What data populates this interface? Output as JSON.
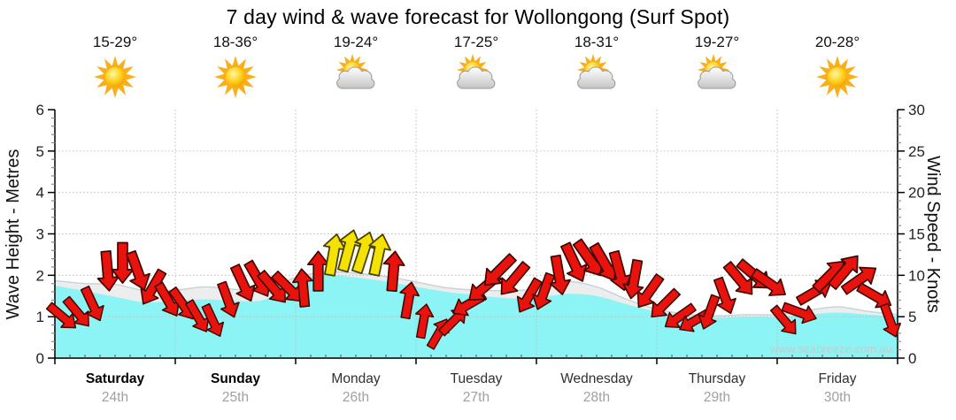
{
  "title": "7 day wind & wave forecast for Wollongong (Surf Spot)",
  "watermark": "www.seabreeze.com.au",
  "days": [
    {
      "name": "Saturday",
      "date": "24th",
      "temp_range": "15-29°",
      "icon": "sunny",
      "weekend": true
    },
    {
      "name": "Sunday",
      "date": "25th",
      "temp_range": "18-36°",
      "icon": "sunny",
      "weekend": true
    },
    {
      "name": "Monday",
      "date": "26th",
      "temp_range": "19-24°",
      "icon": "partly_cloudy",
      "weekend": false
    },
    {
      "name": "Tuesday",
      "date": "27th",
      "temp_range": "17-25°",
      "icon": "partly_cloudy",
      "weekend": false
    },
    {
      "name": "Wednesday",
      "date": "28th",
      "temp_range": "18-31°",
      "icon": "partly_cloudy",
      "weekend": false
    },
    {
      "name": "Thursday",
      "date": "29th",
      "temp_range": "19-27°",
      "icon": "partly_cloudy",
      "weekend": false
    },
    {
      "name": "Friday",
      "date": "30th",
      "temp_range": "20-28°",
      "icon": "sunny",
      "weekend": false
    }
  ],
  "chart_data": {
    "type": "area",
    "title": "7 day wind & wave forecast for Wollongong (Surf Spot)",
    "y_left": {
      "label": "Wave Height - Metres",
      "min": 0,
      "max": 6,
      "major_tick": 1,
      "minor_tick": 0.2,
      "ticks": [
        0,
        1,
        2,
        3,
        4,
        5,
        6
      ]
    },
    "y_right": {
      "label": "Wind Speed - Knots",
      "min": 0,
      "max": 30,
      "major_tick": 5,
      "minor_tick": 1,
      "ticks": [
        0,
        5,
        10,
        15,
        20,
        25,
        30
      ]
    },
    "x_categories": [
      "Saturday 24th",
      "Sunday 25th",
      "Monday 26th",
      "Tuesday 27th",
      "Wednesday 28th",
      "Thursday 29th",
      "Friday 30th"
    ],
    "grid": {
      "horizontal_at_metres": [
        1,
        2,
        3,
        4,
        5
      ],
      "vertical_at_day_boundaries": true,
      "style": "dotted"
    },
    "wave_height_m": {
      "interval_hours": 6,
      "values": [
        1.75,
        1.62,
        1.48,
        1.35,
        1.38,
        1.42,
        1.38,
        1.42,
        1.85,
        2.0,
        1.95,
        1.85,
        1.72,
        1.6,
        1.52,
        1.45,
        1.45,
        1.55,
        1.5,
        1.3,
        1.12,
        1.02,
        0.98,
        1.0,
        1.0,
        1.05,
        1.1,
        1.05,
        1.0
      ]
    },
    "wave_foam_extra_m": [
      0.12,
      0.18,
      0.3,
      0.28,
      0.26,
      0.3,
      0.28,
      0.22,
      0.1,
      0.08,
      0.1,
      0.12,
      0.12,
      0.1,
      0.12,
      0.18,
      0.22,
      0.3,
      0.22,
      0.12,
      0.06,
      0.04,
      0.04,
      0.05,
      0.05,
      0.1,
      0.14,
      0.08,
      0.05
    ],
    "wind": {
      "interval_hours": 3,
      "speed_knots": [
        5,
        5.5,
        6.5,
        10.5,
        11.5,
        10.5,
        8.5,
        7,
        6.5,
        5,
        4.5,
        7,
        9,
        9.5,
        8.5,
        8.5,
        8.5,
        10.5,
        12.5,
        13,
        12.8,
        12.5,
        10.5,
        7,
        4.5,
        3,
        4.5,
        6.5,
        8.5,
        10.5,
        9.5,
        7.5,
        8,
        10,
        11.5,
        12,
        11.5,
        10.5,
        9.5,
        8,
        6.5,
        5,
        4.5,
        5.5,
        7.5,
        9.5,
        10,
        9,
        4.5,
        5.5,
        8,
        10,
        10.5,
        9.5,
        7.5,
        4.5
      ],
      "direction_to_deg": [
        130,
        140,
        155,
        175,
        180,
        160,
        210,
        150,
        145,
        150,
        155,
        160,
        155,
        150,
        140,
        135,
        355,
        0,
        10,
        15,
        18,
        12,
        5,
        10,
        10,
        30,
        45,
        240,
        230,
        225,
        220,
        210,
        200,
        170,
        155,
        145,
        150,
        165,
        190,
        215,
        225,
        235,
        240,
        200,
        160,
        140,
        130,
        125,
        140,
        110,
        60,
        45,
        40,
        55,
        120,
        160
      ],
      "yellow_at_or_above_knots": 12.4
    },
    "colors": {
      "wave_fill": "#8CF4F4",
      "foam_fill": "#EDEDED",
      "foam_edge": "#C6D2D8",
      "arrow_red": "#E8130C",
      "arrow_red_edge": "#3F0600",
      "arrow_yellow": "#F4E300",
      "arrow_yellow_edge": "#4A4000",
      "grid": "#BDBDBD",
      "axis": "#000000",
      "watermark": "#BFCFCF"
    }
  }
}
